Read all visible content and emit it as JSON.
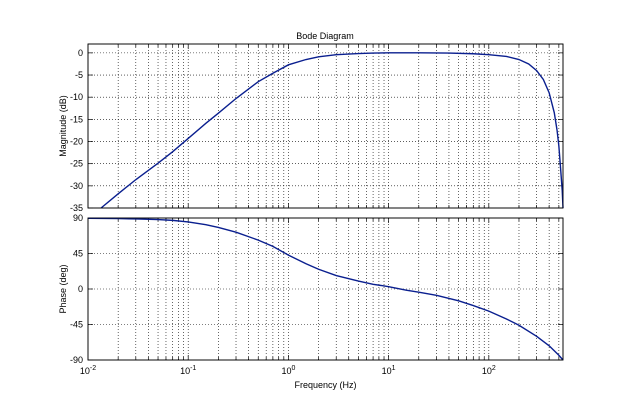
{
  "chart_data": [
    {
      "type": "line",
      "panel": "magnitude",
      "title": "Bode Diagram",
      "ylabel": "Magnitude (dB)",
      "xlabel": "",
      "xscale": "log",
      "xlim": [
        0.01,
        550
      ],
      "ylim": [
        -35,
        2
      ],
      "yticks": [
        0,
        -5,
        -10,
        -15,
        -20,
        -25,
        -30,
        -35
      ],
      "xticks_exp": [
        -2,
        -1,
        0,
        1,
        2
      ],
      "grid": true,
      "series": [
        {
          "color": "#0a1f8f",
          "x": [
            0.0135,
            0.02,
            0.03,
            0.05,
            0.07,
            0.1,
            0.15,
            0.2,
            0.3,
            0.5,
            0.7,
            1,
            1.5,
            2,
            3,
            5,
            7,
            10,
            20,
            40,
            70,
            100,
            150,
            200,
            250,
            300,
            350,
            400,
            450,
            480,
            500,
            520,
            540,
            550
          ],
          "y": [
            -35,
            -31.8,
            -28.6,
            -24.9,
            -22.3,
            -19.3,
            -15.9,
            -13.6,
            -10.3,
            -6.5,
            -4.6,
            -2.7,
            -1.5,
            -0.9,
            -0.4,
            -0.15,
            -0.05,
            0,
            0,
            -0.05,
            -0.2,
            -0.4,
            -0.8,
            -1.5,
            -2.5,
            -4,
            -6,
            -9,
            -13.5,
            -17.5,
            -21,
            -26,
            -31,
            -35
          ]
        }
      ]
    },
    {
      "type": "line",
      "panel": "phase",
      "title": "",
      "ylabel": "Phase (deg)",
      "xlabel": "Frequency  (Hz)",
      "xscale": "log",
      "xlim": [
        0.01,
        550
      ],
      "ylim": [
        -90,
        90
      ],
      "yticks": [
        90,
        45,
        0,
        -45,
        -90
      ],
      "xticks_exp": [
        -2,
        -1,
        0,
        1,
        2
      ],
      "grid": true,
      "series": [
        {
          "color": "#0a1f8f",
          "x": [
            0.01,
            0.02,
            0.03,
            0.05,
            0.07,
            0.1,
            0.15,
            0.2,
            0.3,
            0.5,
            0.7,
            1,
            1.5,
            2,
            3,
            5,
            7,
            10,
            15,
            20,
            30,
            50,
            70,
            100,
            150,
            200,
            300,
            400,
            500,
            550
          ],
          "y": [
            89.7,
            89.3,
            88.8,
            88,
            87,
            85,
            81.5,
            78,
            72,
            62,
            54,
            43,
            32,
            25,
            17,
            10,
            6,
            3,
            -1.5,
            -4,
            -8,
            -15,
            -21,
            -28,
            -38,
            -46,
            -60,
            -72,
            -84,
            -90
          ]
        }
      ]
    }
  ]
}
